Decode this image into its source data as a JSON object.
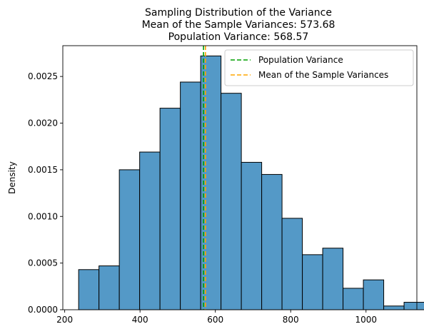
{
  "chart_data": {
    "type": "histogram",
    "title_lines": [
      "Sampling Distribution of the Variance",
      "Mean of the Sample Variances: 573.68",
      "Population Variance: 568.57"
    ],
    "xlabel": "",
    "ylabel": "Density",
    "xlim": [
      195,
      1135
    ],
    "ylim": [
      0,
      0.00283
    ],
    "xticks": [
      200,
      400,
      600,
      800,
      1000
    ],
    "yticks": [
      0.0,
      0.0005,
      0.001,
      0.0015,
      0.002,
      0.0025
    ],
    "ytick_labels": [
      "0.0000",
      "0.0005",
      "0.0010",
      "0.0015",
      "0.0020",
      "0.0025"
    ],
    "bin_start": 237,
    "bin_width": 54,
    "densities": [
      0.00043,
      0.00047,
      0.0015,
      0.00169,
      0.00216,
      0.00244,
      0.00272,
      0.00232,
      0.00158,
      0.00145,
      0.00098,
      0.00059,
      0.00066,
      0.00023,
      0.00032,
      4e-05,
      8e-05
    ],
    "bar_color": "#5499c7",
    "bar_edge_color": "#000000",
    "reference_lines": [
      {
        "name": "Population Variance",
        "x": 568.57,
        "color": "#00a000"
      },
      {
        "name": "Mean of the Sample Variances",
        "x": 573.68,
        "color": "#ffa500"
      }
    ],
    "legend_position": "top-right",
    "grid": false
  }
}
